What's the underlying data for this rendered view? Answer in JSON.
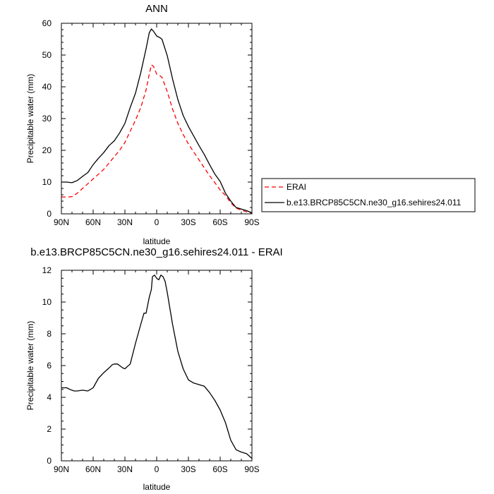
{
  "chart_data": [
    {
      "type": "line",
      "title": "ANN",
      "xlabel": "latitude",
      "ylabel": "Precipitable water (mm)",
      "xlim": [
        90,
        -90
      ],
      "ylim": [
        0,
        60
      ],
      "x_tick_labels": [
        "90N",
        "60N",
        "30N",
        "0",
        "30S",
        "60S",
        "90S"
      ],
      "y_tick_labels": [
        "0",
        "10",
        "20",
        "30",
        "40",
        "50",
        "60"
      ],
      "grid": false,
      "legend": {
        "placement": "outside-right"
      },
      "series": [
        {
          "name": "ERAI",
          "color": "#ff0000",
          "dash": "dashed",
          "x": [
            90,
            85,
            80,
            75,
            70,
            65,
            60,
            55,
            50,
            45,
            40,
            35,
            30,
            25,
            20,
            15,
            10,
            7,
            5,
            3,
            0,
            -3,
            -5,
            -10,
            -15,
            -20,
            -25,
            -30,
            -35,
            -40,
            -45,
            -50,
            -55,
            -60,
            -65,
            -70,
            -75,
            -80,
            -85,
            -90
          ],
          "y": [
            5.3,
            5.3,
            5.4,
            6.5,
            8,
            9.5,
            11,
            12.5,
            14,
            16,
            18,
            20,
            22.5,
            26,
            29.5,
            33.5,
            39,
            44,
            46.9,
            46.5,
            44,
            43.5,
            43,
            38.5,
            33,
            28.5,
            25,
            22,
            19.5,
            17,
            14.5,
            12,
            9.8,
            7.5,
            5.8,
            3.5,
            1.8,
            1.2,
            0.6,
            0.2
          ]
        },
        {
          "name": "b.e13.BRCP85C5CN.ne30_g16.sehires24.011",
          "color": "#000000",
          "dash": "solid",
          "x": [
            90,
            85,
            80,
            75,
            70,
            65,
            60,
            55,
            50,
            45,
            40,
            35,
            30,
            25,
            20,
            15,
            10,
            7,
            5,
            3,
            0,
            -3,
            -5,
            -10,
            -15,
            -20,
            -25,
            -30,
            -35,
            -40,
            -45,
            -50,
            -55,
            -60,
            -65,
            -70,
            -75,
            -80,
            -85,
            -90
          ],
          "y": [
            10,
            10,
            9.8,
            10.5,
            11.8,
            13,
            15.5,
            17.5,
            19.3,
            21.5,
            23,
            25.5,
            28.5,
            33.5,
            38,
            44.5,
            52,
            57,
            58.2,
            57.5,
            56,
            55.5,
            55,
            49.8,
            42.5,
            36,
            31,
            27.5,
            24.5,
            21.5,
            18.7,
            15.5,
            12.5,
            10.2,
            6.5,
            4,
            2,
            1.5,
            1,
            0.3
          ]
        }
      ]
    },
    {
      "type": "line",
      "title": "b.e13.BRCP85C5CN.ne30_g16.sehires24.011 - ERAI",
      "xlabel": "latitude",
      "ylabel": "Precipitable water (mm)",
      "xlim": [
        90,
        -90
      ],
      "ylim": [
        0,
        12
      ],
      "x_tick_labels": [
        "90N",
        "60N",
        "30N",
        "0",
        "30S",
        "60S",
        "90S"
      ],
      "y_tick_labels": [
        "0",
        "2",
        "4",
        "6",
        "8",
        "10",
        "12"
      ],
      "grid": false,
      "series": [
        {
          "color": "#000000",
          "dash": "solid",
          "x": [
            90,
            85,
            82,
            78,
            75,
            70,
            65,
            60,
            55,
            50,
            45,
            42,
            40,
            37,
            35,
            32,
            30,
            25,
            20,
            15,
            12,
            10,
            7,
            5,
            4,
            2,
            0,
            -2,
            -4,
            -6,
            -8,
            -10,
            -15,
            -20,
            -25,
            -30,
            -35,
            -40,
            -45,
            -50,
            -55,
            -60,
            -65,
            -70,
            -75,
            -80,
            -85,
            -90
          ],
          "y": [
            4.6,
            4.6,
            4.5,
            4.4,
            4.4,
            4.45,
            4.4,
            4.6,
            5.2,
            5.55,
            5.85,
            6.05,
            6.1,
            6.1,
            6.0,
            5.85,
            5.8,
            6.1,
            7.4,
            8.6,
            9.3,
            9.3,
            10.3,
            10.8,
            11.6,
            11.7,
            11.5,
            11.4,
            11.7,
            11.6,
            11.3,
            10.6,
            8.6,
            6.9,
            5.8,
            5.1,
            4.9,
            4.8,
            4.7,
            4.3,
            3.8,
            3.2,
            2.4,
            1.3,
            0.7,
            0.55,
            0.45,
            0.15
          ]
        }
      ]
    }
  ]
}
